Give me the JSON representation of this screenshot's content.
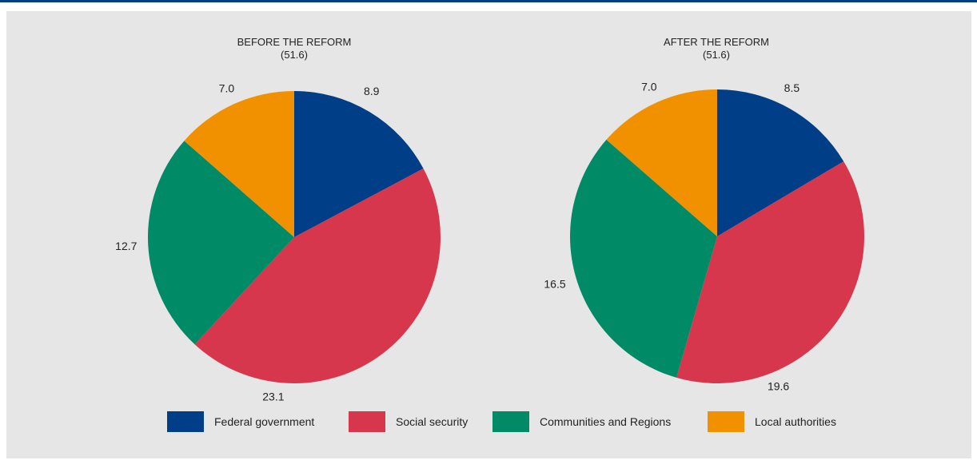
{
  "colors": {
    "federal": "#003f87",
    "social": "#d7374d",
    "communities": "#008b66",
    "local": "#f29100"
  },
  "legend": [
    {
      "label": "Federal government",
      "color": "#003f87"
    },
    {
      "label": "Social security",
      "color": "#d7374d"
    },
    {
      "label": "Communities and Regions",
      "color": "#008b66"
    },
    {
      "label": "Local authorities",
      "color": "#f29100"
    }
  ],
  "chart_data": [
    {
      "type": "pie",
      "title": "BEFORE THE REFORM",
      "subtitle": "(51.6)",
      "categories": [
        "Federal government",
        "Social security",
        "Communities and Regions",
        "Local authorities"
      ],
      "values": [
        8.9,
        23.1,
        12.7,
        7.0
      ],
      "value_labels": [
        "8.9",
        "23.1",
        "12.7",
        "7.0"
      ],
      "legend_position": "bottom"
    },
    {
      "type": "pie",
      "title": "AFTER THE REFORM",
      "subtitle": "(51.6)",
      "categories": [
        "Federal government",
        "Social security",
        "Communities and Regions",
        "Local authorities"
      ],
      "values": [
        8.5,
        19.6,
        16.5,
        7.0
      ],
      "value_labels": [
        "8.5",
        "19.6",
        "16.5",
        "7.0"
      ],
      "legend_position": "bottom"
    }
  ]
}
